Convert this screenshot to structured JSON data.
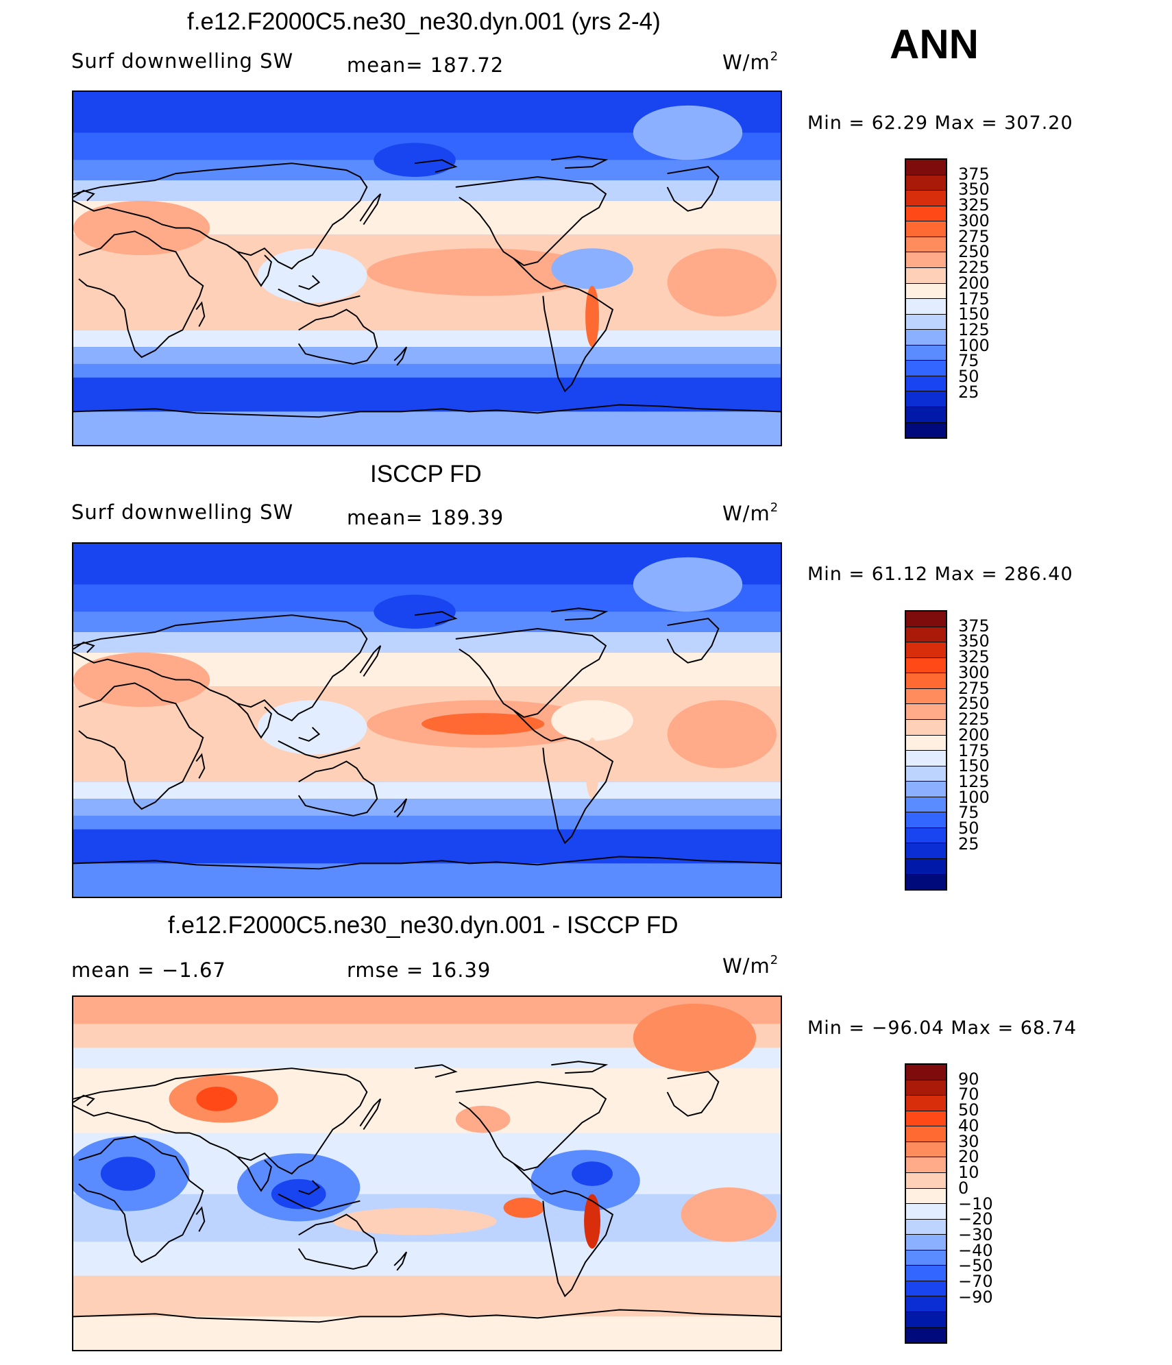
{
  "season": "ANN",
  "colors": {
    "abs_scale": [
      "#000a7a",
      "#0019a8",
      "#0a2dd4",
      "#1845f0",
      "#3366ff",
      "#5a8cff",
      "#8ab0ff",
      "#bcd4ff",
      "#e2eeff",
      "#fff0e2",
      "#ffd0b8",
      "#ffab8a",
      "#ff8c5c",
      "#ff6a33",
      "#ff4a18",
      "#d82e0c",
      "#aa1a08",
      "#7e0c0c"
    ],
    "diff_scale": [
      "#000a7a",
      "#0019a8",
      "#0a2dd4",
      "#1845f0",
      "#3366ff",
      "#5a8cff",
      "#8ab0ff",
      "#bcd4ff",
      "#e2eeff",
      "#fff0e2",
      "#ffd0b8",
      "#ffab8a",
      "#ff8c5c",
      "#ff6a33",
      "#ff4a18",
      "#d82e0c",
      "#aa1a08",
      "#7e0c0c"
    ]
  },
  "panels": [
    {
      "title": "f.e12.F2000C5.ne30_ne30.dyn.001 (yrs 2-4)",
      "left_label": "Surf  downwelling  SW",
      "center_label": "mean=  187.72",
      "units": "W/m",
      "units_sup": "2",
      "minmax": "Min  =    62.29  Max  =  307.20",
      "colorbar_labels": [
        "375",
        "350",
        "325",
        "300",
        "275",
        "250",
        "225",
        "200",
        "175",
        "150",
        "125",
        "100",
        "75",
        "50",
        "25"
      ]
    },
    {
      "title": "ISCCP FD",
      "left_label": "Surf  downwelling  SW",
      "center_label": "mean=  189.39",
      "units": "W/m",
      "units_sup": "2",
      "minmax": "Min  =    61.12  Max  =  286.40",
      "colorbar_labels": [
        "375",
        "350",
        "325",
        "300",
        "275",
        "250",
        "225",
        "200",
        "175",
        "150",
        "125",
        "100",
        "75",
        "50",
        "25"
      ]
    },
    {
      "title": "f.e12.F2000C5.ne30_ne30.dyn.001 - ISCCP FD",
      "left_label": "mean  =    −1.67",
      "center_label": "rmse  =    16.39",
      "units": "W/m",
      "units_sup": "2",
      "minmax": "Min  =  −96.04  Max  =    68.74",
      "colorbar_labels": [
        "90",
        "70",
        "50",
        "40",
        "30",
        "20",
        "10",
        "0",
        "−10",
        "−20",
        "−30",
        "−40",
        "−50",
        "−70",
        "−90"
      ]
    }
  ],
  "chart_data": [
    {
      "type": "heatmap",
      "title": "f.e12.F2000C5.ne30_ne30.dyn.001 (yrs 2-4)",
      "variable": "Surf  downwelling  SW",
      "units": "W/m2",
      "mean": 187.72,
      "min": 62.29,
      "max": 307.2,
      "contour_levels": [
        25,
        50,
        75,
        100,
        125,
        150,
        175,
        200,
        225,
        250,
        275,
        300,
        325,
        350,
        375
      ]
    },
    {
      "type": "heatmap",
      "title": "ISCCP FD",
      "variable": "Surf  downwelling  SW",
      "units": "W/m2",
      "mean": 189.39,
      "min": 61.12,
      "max": 286.4,
      "contour_levels": [
        25,
        50,
        75,
        100,
        125,
        150,
        175,
        200,
        225,
        250,
        275,
        300,
        325,
        350,
        375
      ]
    },
    {
      "type": "heatmap",
      "title": "f.e12.F2000C5.ne30_ne30.dyn.001 - ISCCP FD",
      "units": "W/m2",
      "mean": -1.67,
      "rmse": 16.39,
      "min": -96.04,
      "max": 68.74,
      "contour_levels": [
        -90,
        -70,
        -50,
        -40,
        -30,
        -20,
        -10,
        0,
        10,
        20,
        30,
        40,
        50,
        70,
        90
      ]
    }
  ]
}
